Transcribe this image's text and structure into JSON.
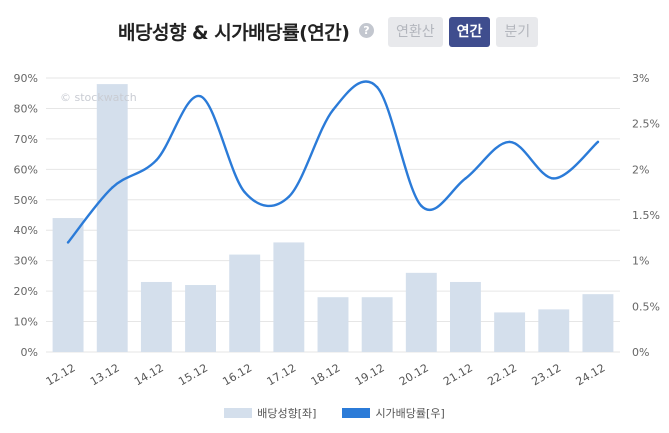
{
  "header": {
    "title": "배당성향 & 시가배당률(연간)",
    "help_icon": "?",
    "tabs": [
      {
        "label": "연환산",
        "active": false
      },
      {
        "label": "연간",
        "active": true
      },
      {
        "label": "분기",
        "active": false
      }
    ]
  },
  "watermark": "© stockwatch",
  "colors": {
    "bar": "#d4dfec",
    "line": "#2b7bd8",
    "grid": "#e6e6e6",
    "active_tab": "#3f4d8e"
  },
  "chart_data": {
    "type": "bar",
    "categories": [
      "12.12",
      "13.12",
      "14.12",
      "15.12",
      "16.12",
      "17.12",
      "18.12",
      "19.12",
      "20.12",
      "21.12",
      "22.12",
      "23.12",
      "24.12"
    ],
    "series": [
      {
        "name": "배당성향[좌]",
        "type": "bar",
        "axis": "left",
        "values": [
          44,
          88,
          23,
          22,
          32,
          36,
          18,
          18,
          26,
          23,
          13,
          14,
          19
        ]
      },
      {
        "name": "시가배당률[우]",
        "type": "line",
        "axis": "right",
        "values": [
          1.2,
          1.8,
          2.1,
          2.8,
          1.75,
          1.7,
          2.65,
          2.9,
          1.6,
          1.9,
          2.3,
          1.9,
          2.3
        ]
      }
    ],
    "ylim_left": [
      0,
      90
    ],
    "ylim_right": [
      0,
      3
    ],
    "left_ticks": [
      "0%",
      "10%",
      "20%",
      "30%",
      "40%",
      "50%",
      "60%",
      "70%",
      "80%",
      "90%"
    ],
    "right_ticks": [
      "0%",
      "0.5%",
      "1%",
      "1.5%",
      "2%",
      "2.5%",
      "3%"
    ],
    "legend_position": "bottom-center",
    "grid": true
  }
}
